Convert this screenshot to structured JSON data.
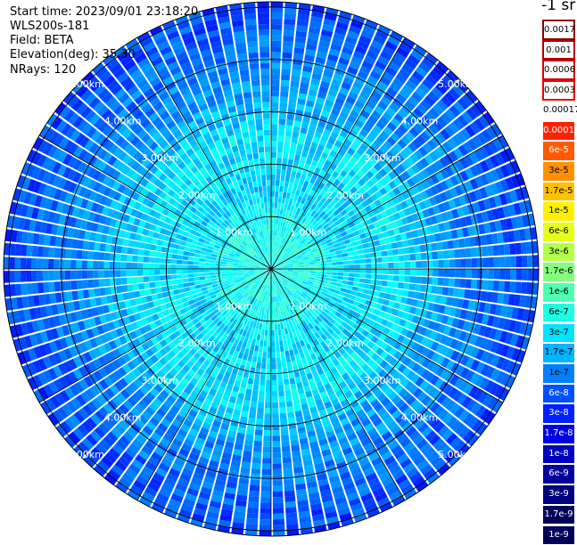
{
  "header": {
    "start_time": "Start time: 2023/09/01 23:18:20",
    "instrument": "WLS200s-181",
    "field": "Field: BETA",
    "elevation": "Elevation(deg): 35.30",
    "nrays": "NRays: 120"
  },
  "colorbar": {
    "unit_label": "-1 sr",
    "ticks": [
      "0.0017",
      "0.001",
      "0.0006",
      "0.0003",
      "0.00017",
      "0.0001",
      "6e-5",
      "3e-5",
      "1.7e-5",
      "1e-5",
      "6e-6",
      "3e-6",
      "1.7e-6",
      "1e-6",
      "6e-7",
      "3e-7",
      "1.7e-7",
      "1e-7",
      "6e-8",
      "3e-8",
      "1.7e-8",
      "1e-8",
      "6e-9",
      "3e-9",
      "1.7e-9",
      "1e-9"
    ],
    "colors": [
      "#8b0000",
      "#b00000",
      "#d40000",
      "#f00000",
      "#ffffff",
      "#ff2000",
      "#ff5a00",
      "#ff9000",
      "#ffc000",
      "#ffef00",
      "#e6ff1a",
      "#b4ff4a",
      "#82ff7c",
      "#4effb0",
      "#1cffe2",
      "#00e4ff",
      "#00b4ff",
      "#0080ff",
      "#0050ff",
      "#0020ff",
      "#0000e8",
      "#0000c0",
      "#00009a",
      "#000080",
      "#00005a"
    ]
  },
  "chart_data": {
    "type": "heatmap",
    "projection": "polar (PPI scan)",
    "field": "BETA",
    "n_rays": 120,
    "elevation_deg": 35.3,
    "range_unit": "km",
    "range_rings_km": [
      1,
      2,
      3,
      4,
      5
    ],
    "ring_labels": [
      "1.00km",
      "2.00km",
      "3.00km",
      "4.00km",
      "5.00km"
    ],
    "spokes_deg": [
      0,
      30,
      60,
      90,
      120,
      150,
      180,
      210,
      240,
      270,
      300,
      330
    ],
    "max_range_km": 5.1,
    "value_pattern_log10_beta_by_range_km": [
      {
        "range_km": 0.0,
        "log10_beta": -6.5
      },
      {
        "range_km": 1.0,
        "log10_beta": -6.6
      },
      {
        "range_km": 1.5,
        "log10_beta": -6.9
      },
      {
        "range_km": 2.5,
        "log10_beta": -6.8
      },
      {
        "range_km": 3.5,
        "log10_beta": -7.3
      },
      {
        "range_km": 4.5,
        "log10_beta": -7.6
      },
      {
        "range_km": 5.1,
        "log10_beta": -7.8
      }
    ]
  }
}
